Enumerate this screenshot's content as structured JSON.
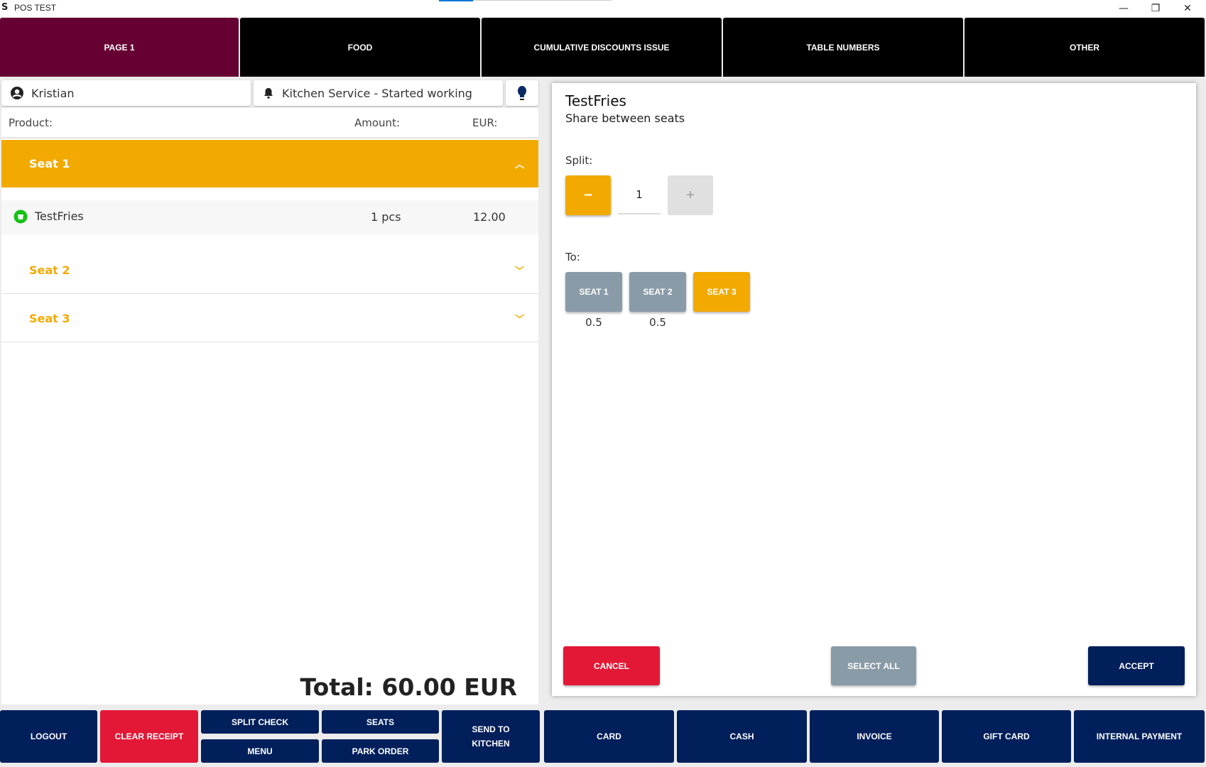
{
  "window": {
    "title": "POS TEST",
    "minimize": "—",
    "restore": "❐",
    "close": "✕"
  },
  "tabs": [
    {
      "label": "PAGE 1",
      "active": true
    },
    {
      "label": "FOOD"
    },
    {
      "label": "CUMULATIVE DISCOUNTS ISSUE"
    },
    {
      "label": "TABLE NUMBERS"
    },
    {
      "label": "OTHER"
    }
  ],
  "header": {
    "user": "Kristian",
    "status": "Kitchen Service - Started working"
  },
  "receipt": {
    "columns": {
      "product": "Product:",
      "amount": "Amount:",
      "eur": "EUR:"
    },
    "seats": [
      {
        "label": "Seat 1",
        "expanded": true
      },
      {
        "label": "Seat 2",
        "expanded": false
      },
      {
        "label": "Seat 3",
        "expanded": false
      }
    ],
    "items": [
      {
        "name": "TestFries",
        "amount": "1 pcs",
        "price": "12.00"
      }
    ],
    "total": "Total: 60.00 EUR"
  },
  "split_dialog": {
    "product": "TestFries",
    "subtitle": "Share between seats",
    "split_label": "Split:",
    "split_value": "1",
    "minus": "−",
    "plus": "+",
    "to_label": "To:",
    "seats": [
      {
        "label": "SEAT 1",
        "share": "0.5",
        "selected": false
      },
      {
        "label": "SEAT 2",
        "share": "0.5",
        "selected": false
      },
      {
        "label": "SEAT 3",
        "share": "",
        "selected": true
      }
    ],
    "cancel": "CANCEL",
    "select_all": "SELECT ALL",
    "accept": "ACCEPT"
  },
  "bottom": {
    "logout": "LOGOUT",
    "clear_receipt": "CLEAR RECEIPT",
    "split_check": "SPLIT CHECK",
    "menu": "MENU",
    "seats": "SEATS",
    "park_order": "PARK ORDER",
    "send_to_kitchen": "SEND TO KITCHEN",
    "card": "CARD",
    "cash": "CASH",
    "invoice": "INVOICE",
    "gift_card": "GIFT CARD",
    "internal_payment": "INTERNAL PAYMENT"
  },
  "colors": {
    "navy": "#001F5B",
    "red": "#E31837",
    "orange": "#F2AA00",
    "gray": "#8A9BA8",
    "active_tab": "#660033"
  }
}
